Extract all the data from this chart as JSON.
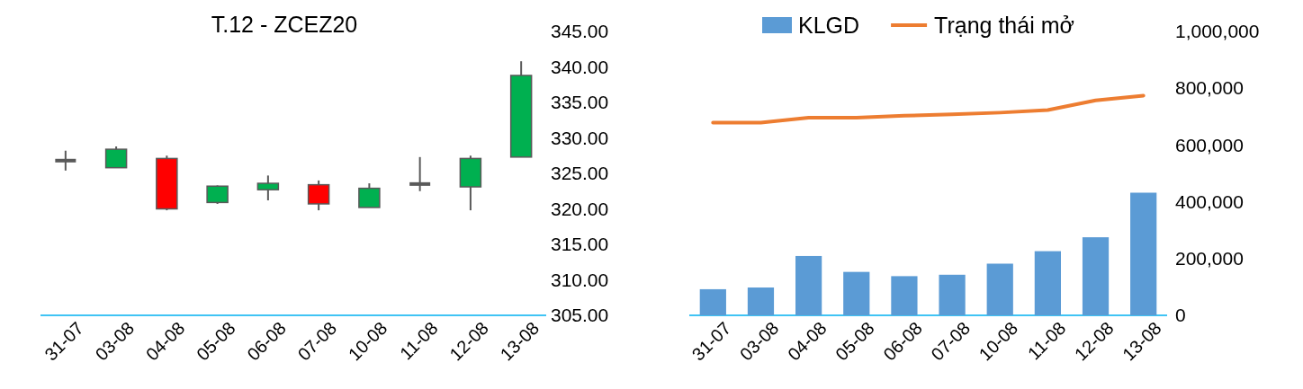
{
  "chart_data": [
    {
      "type": "candlestick",
      "title": "T.12 - ZCEZ20",
      "categories": [
        "31-07",
        "03-08",
        "04-08",
        "05-08",
        "06-08",
        "07-08",
        "10-08",
        "11-08",
        "12-08",
        "13-08"
      ],
      "ohlc": [
        [
          326.8,
          328.2,
          325.4,
          326.8
        ],
        [
          325.8,
          328.8,
          325.8,
          328.4
        ],
        [
          327.1,
          327.5,
          319.8,
          320.0
        ],
        [
          320.9,
          323.3,
          320.7,
          323.2
        ],
        [
          322.7,
          324.7,
          321.2,
          323.6
        ],
        [
          323.4,
          324.0,
          319.8,
          320.7
        ],
        [
          320.2,
          323.6,
          320.2,
          322.9
        ],
        [
          323.5,
          327.3,
          322.5,
          323.5
        ],
        [
          323.1,
          327.5,
          319.8,
          327.1
        ],
        [
          327.3,
          340.8,
          327.3,
          338.8
        ]
      ],
      "colors": [
        "#595959",
        "#00b050",
        "#ff0000",
        "#00b050",
        "#00b050",
        "#ff0000",
        "#00b050",
        "#595959",
        "#00b050",
        "#00b050"
      ],
      "ylim": [
        305,
        345
      ],
      "yticks": [
        {
          "value": 305,
          "label": "305.00"
        },
        {
          "value": 310,
          "label": "310.00"
        },
        {
          "value": 315,
          "label": "315.00"
        },
        {
          "value": 320,
          "label": "320.00"
        },
        {
          "value": 325,
          "label": "325.00"
        },
        {
          "value": 330,
          "label": "330.00"
        },
        {
          "value": 335,
          "label": "335.00"
        },
        {
          "value": 340,
          "label": "340.00"
        },
        {
          "value": 345,
          "label": "345.00"
        }
      ]
    },
    {
      "type": "bar",
      "categories": [
        "31-07",
        "03-08",
        "04-08",
        "05-08",
        "06-08",
        "07-08",
        "10-08",
        "11-08",
        "12-08",
        "13-08"
      ],
      "series": [
        {
          "name": "KLGD",
          "type": "bar",
          "color": "#5b9bd5",
          "values": [
            92000,
            98000,
            209000,
            153000,
            138000,
            143000,
            182000,
            226000,
            275000,
            432000
          ]
        },
        {
          "name": "Trạng thái mở",
          "type": "line",
          "color": "#ed7d31",
          "values": [
            679000,
            679000,
            696000,
            696000,
            703000,
            708000,
            714000,
            723000,
            757000,
            774000
          ]
        }
      ],
      "ylim": [
        0,
        1000000
      ],
      "yticks": [
        {
          "value": 0,
          "label": "0"
        },
        {
          "value": 200000,
          "label": "200,000"
        },
        {
          "value": 400000,
          "label": "400,000"
        },
        {
          "value": 600000,
          "label": "600,000"
        },
        {
          "value": 800000,
          "label": "800,000"
        },
        {
          "value": 1000000,
          "label": "1,000,000"
        }
      ],
      "legend": "top"
    }
  ]
}
